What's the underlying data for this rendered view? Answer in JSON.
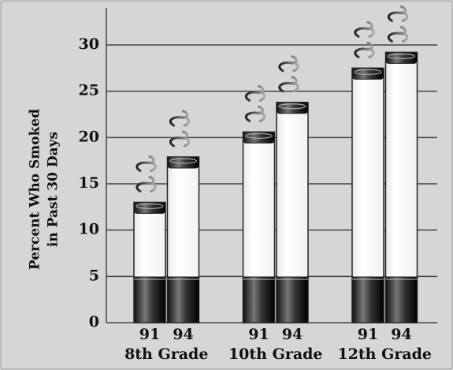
{
  "chart_data": {
    "type": "bar",
    "ylabel": [
      "Percent Who Smoked",
      "in Past 30 Days"
    ],
    "groups": [
      "8th Grade",
      "10th Grade",
      "12th Grade"
    ],
    "categories": [
      "91",
      "94",
      "91",
      "94",
      "91",
      "94"
    ],
    "values": [
      13.0,
      17.9,
      20.6,
      23.8,
      27.5,
      29.2
    ],
    "ylim": [
      0,
      30
    ],
    "yticks": [
      0,
      5,
      10,
      15,
      20,
      25,
      30
    ],
    "grid": true
  }
}
